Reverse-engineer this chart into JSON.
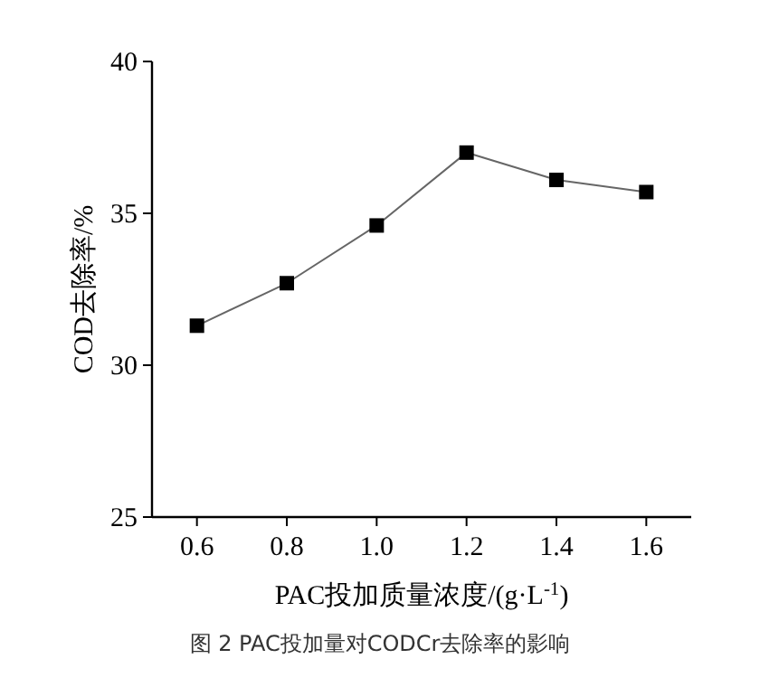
{
  "chart_data": {
    "type": "line",
    "xlabel": "PAC投加质量浓度/(g·L$^{-1}$)",
    "ylabel": "COD去除率/%",
    "annotations": [
      "图 2 PAC投加量对CODCr去除率的影响"
    ],
    "x": [
      0.6,
      0.8,
      1.0,
      1.2,
      1.4,
      1.6
    ],
    "series": [
      {
        "color": "#000000",
        "values": [
          31.3,
          32.7,
          34.6,
          37.0,
          36.1,
          35.7
        ]
      }
    ],
    "xlim": [
      0.5,
      1.7
    ],
    "xticks": [
      {
        "value": 0.6,
        "label": "0.6"
      },
      {
        "value": 0.8,
        "label": "0.8"
      },
      {
        "value": 1.0,
        "label": "1.0"
      },
      {
        "value": 1.2,
        "label": "1.2"
      },
      {
        "value": 1.4,
        "label": "1.4"
      },
      {
        "value": 1.6,
        "label": "1.6"
      }
    ],
    "ylim": [
      25,
      40
    ],
    "yticks": [
      25,
      30,
      35,
      40
    ],
    "grid": false,
    "marker": "square",
    "line_style": "solid"
  }
}
